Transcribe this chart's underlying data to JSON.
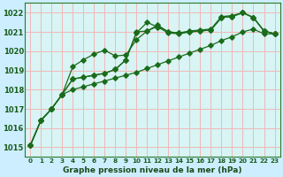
{
  "title": "Graphe pression niveau de la mer (hPa)",
  "background_color": "#cceeff",
  "plot_bg_color": "#d8f4f4",
  "grid_color": "#f0b8b8",
  "line_color": "#1a6b1a",
  "xlim": [
    -0.5,
    23.5
  ],
  "ylim": [
    1014.5,
    1022.5
  ],
  "yticks": [
    1015,
    1016,
    1017,
    1018,
    1019,
    1020,
    1021,
    1022
  ],
  "xticks": [
    0,
    1,
    2,
    3,
    4,
    5,
    6,
    7,
    8,
    9,
    10,
    11,
    12,
    13,
    14,
    15,
    16,
    17,
    18,
    19,
    20,
    21,
    22,
    23
  ],
  "series": [
    [
      1015.1,
      1016.4,
      1017.0,
      1017.75,
      1018.55,
      1018.65,
      1018.75,
      1018.85,
      1019.05,
      1019.55,
      1021.0,
      1021.05,
      1021.35,
      1021.0,
      1020.95,
      1021.05,
      1021.1,
      1021.15,
      1021.8,
      1021.85,
      1022.0,
      1021.75,
      1021.05,
      1020.9
    ],
    [
      1015.1,
      1016.4,
      1017.0,
      1017.75,
      1018.55,
      1018.65,
      1018.75,
      1018.85,
      1019.05,
      1019.55,
      1020.95,
      1021.5,
      1021.25,
      1020.95,
      1020.9,
      1021.0,
      1021.05,
      1021.1,
      1021.75,
      1021.8,
      1022.0,
      1021.75,
      1021.05,
      1020.9
    ],
    [
      1015.1,
      1016.4,
      1017.0,
      1017.75,
      1019.2,
      1019.55,
      1019.85,
      1020.05,
      1019.75,
      1019.8,
      1020.6,
      1021.05,
      1021.3,
      1021.0,
      1020.95,
      1021.0,
      1021.05,
      1021.1,
      1021.75,
      1021.8,
      1022.0,
      1021.75,
      1021.05,
      1020.9
    ],
    [
      1015.1,
      1016.4,
      1017.0,
      1017.75,
      1018.0,
      1018.15,
      1018.3,
      1018.45,
      1018.6,
      1018.75,
      1018.9,
      1019.1,
      1019.3,
      1019.5,
      1019.7,
      1019.9,
      1020.1,
      1020.3,
      1020.55,
      1020.75,
      1021.0,
      1021.15,
      1020.9,
      1020.9
    ]
  ]
}
